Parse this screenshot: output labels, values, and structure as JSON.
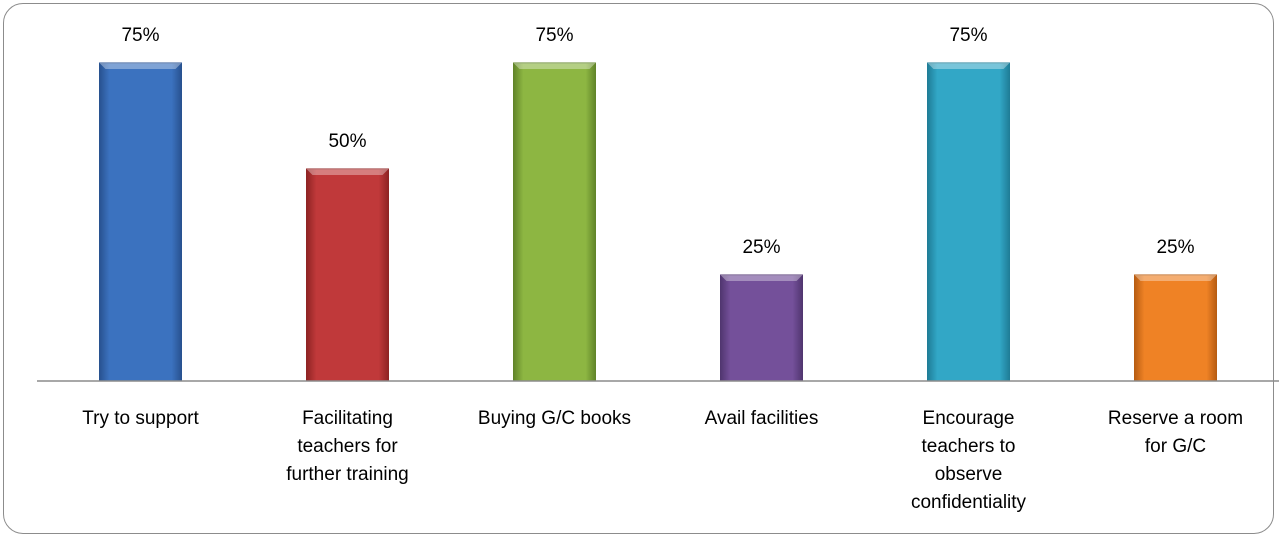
{
  "chart_data": {
    "type": "bar",
    "title": "",
    "xlabel": "",
    "ylabel": "",
    "ylim": [
      0,
      100
    ],
    "grid": false,
    "legend": "none",
    "categories": [
      [
        "Try to support"
      ],
      [
        "Facilitating",
        "teachers for",
        "further training"
      ],
      [
        "Buying G/C books"
      ],
      [
        "Avail facilities"
      ],
      [
        "Encourage",
        "teachers to",
        "observe",
        "confidentiality"
      ],
      [
        "Reserve a room",
        "for G/C"
      ]
    ],
    "values": [
      75,
      50,
      75,
      25,
      75,
      25
    ],
    "value_labels": [
      "75%",
      "50%",
      "75%",
      "25%",
      "75%",
      "25%"
    ],
    "colors": [
      "#3b72bf",
      "#c0393a",
      "#8db642",
      "#74509a",
      "#32a7c6",
      "#ef8225"
    ],
    "dark_colors": [
      "#285290",
      "#8f2424",
      "#62852a",
      "#513670",
      "#1f7d97",
      "#b85d12"
    ]
  }
}
